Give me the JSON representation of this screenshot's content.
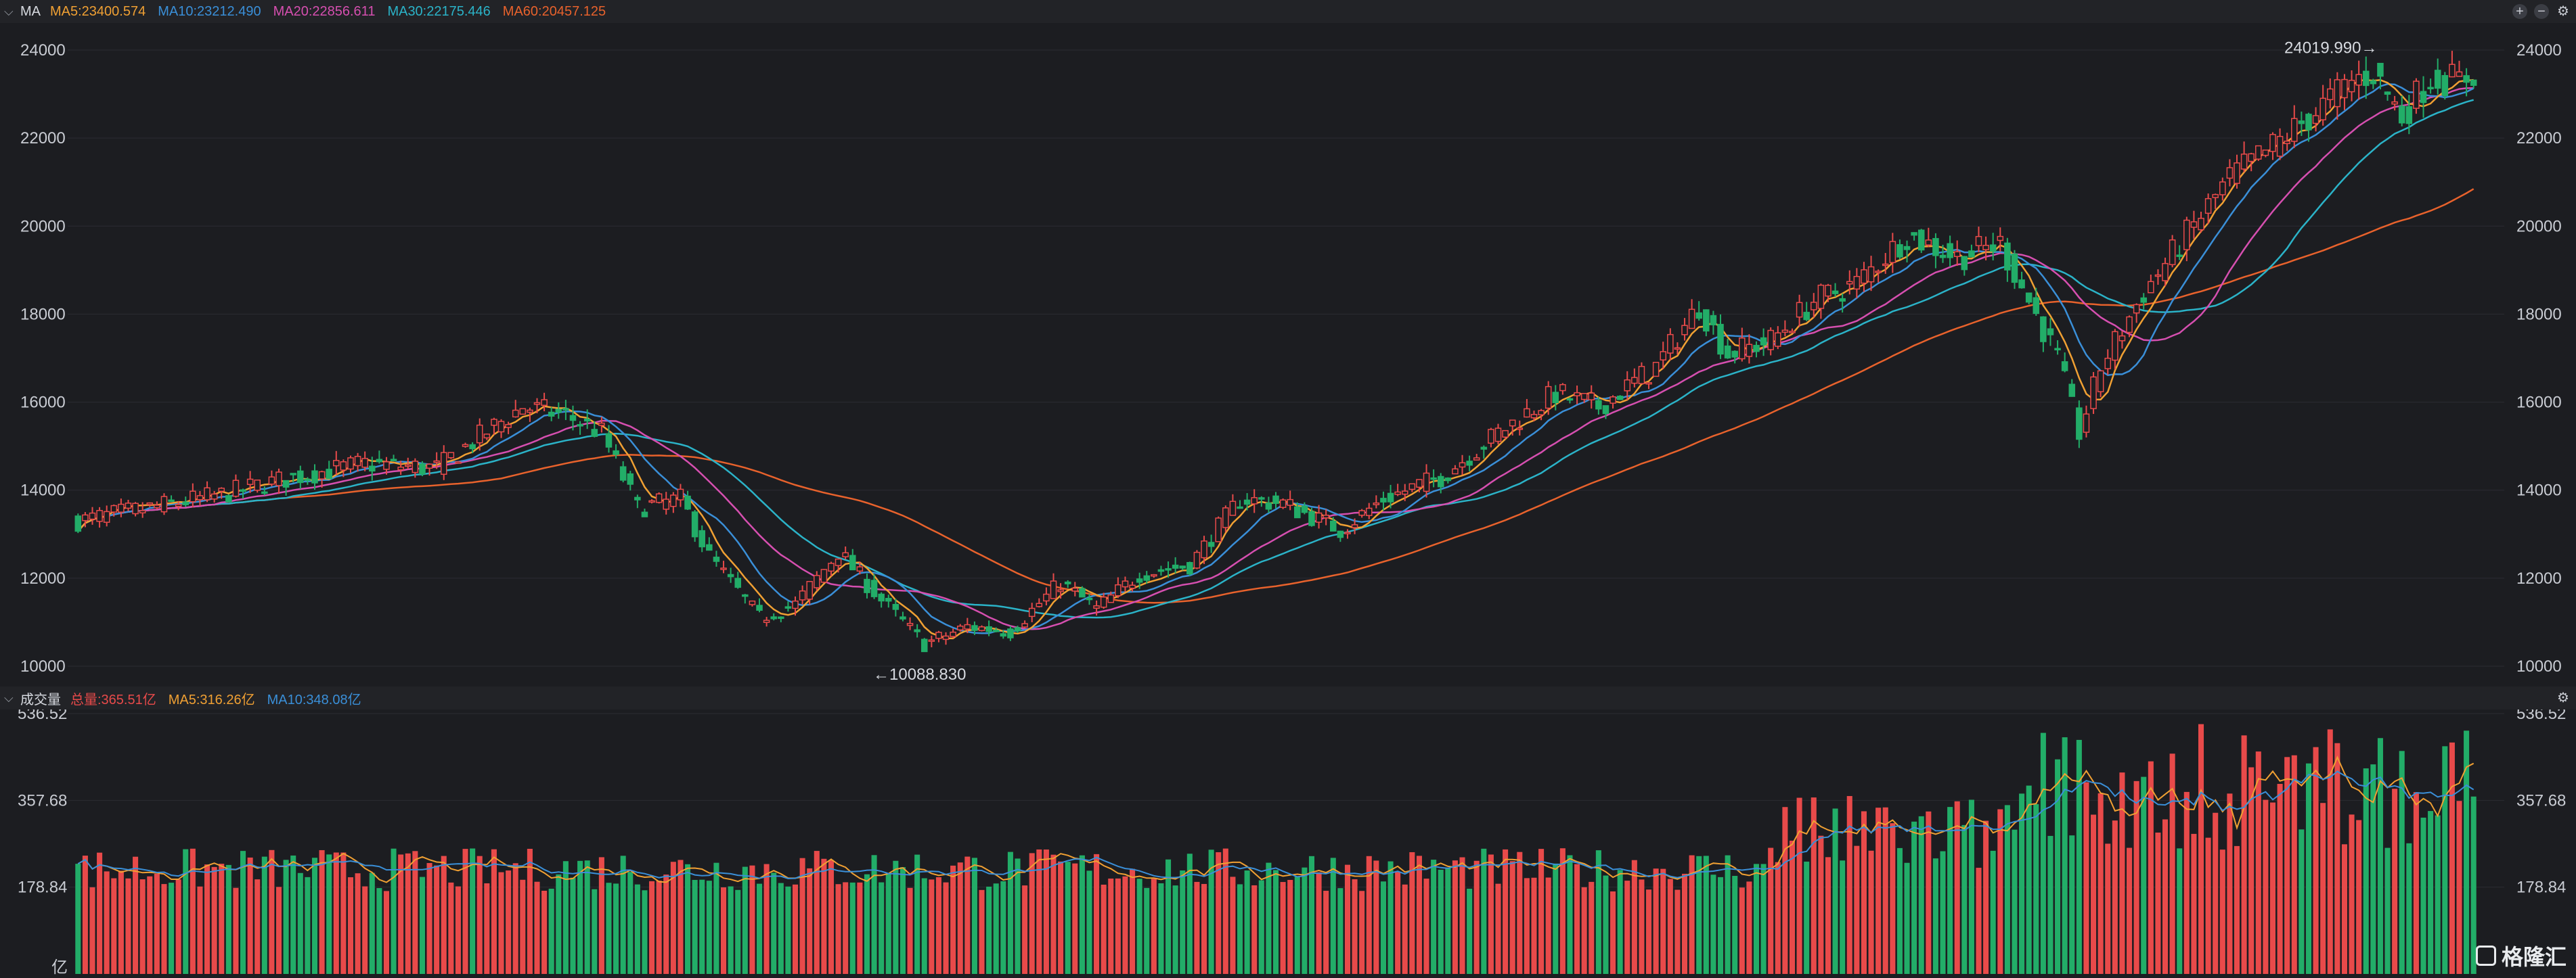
{
  "price_panel": {
    "indicator": "MA",
    "legend": [
      {
        "text": "MA5:23400.574",
        "color": "#f0a033"
      },
      {
        "text": "MA10:23212.490",
        "color": "#3a8fd8"
      },
      {
        "text": "MA20:22856.611",
        "color": "#d64fb0"
      },
      {
        "text": "MA30:22175.446",
        "color": "#2bb3c8"
      },
      {
        "text": "MA60:20457.125",
        "color": "#e8622c"
      }
    ],
    "high_label": "24019.990→",
    "low_label": "←10088.830"
  },
  "volume_panel": {
    "label": "成交量",
    "legend": [
      {
        "text": "总量:365.51亿",
        "color": "#e84a4a"
      },
      {
        "text": "MA5:316.26亿",
        "color": "#f0a033"
      },
      {
        "text": "MA10:348.08亿",
        "color": "#3a8fd8"
      }
    ],
    "unit": "亿"
  },
  "tools": {
    "zoom_in": "+",
    "zoom_out": "−",
    "settings": "⚙"
  },
  "watermark": "格隆汇",
  "colors": {
    "up": "#e84a4a",
    "down": "#22ad68",
    "background": "#1c1d21",
    "grid": "#2b2d33"
  },
  "chart_data": [
    {
      "type": "candlestick",
      "title": "",
      "ylim": [
        10000,
        24000
      ],
      "yticks": [
        "24000",
        "22000",
        "20000",
        "18000",
        "16000",
        "14000",
        "12000",
        "10000"
      ],
      "grid": true,
      "anchors": [
        {
          "i": 0,
          "close": 13300
        },
        {
          "i": 10,
          "close": 13600
        },
        {
          "i": 20,
          "close": 13900
        },
        {
          "i": 30,
          "close": 14300
        },
        {
          "i": 40,
          "close": 14600
        },
        {
          "i": 50,
          "close": 14500
        },
        {
          "i": 55,
          "close": 15100
        },
        {
          "i": 62,
          "close": 15900
        },
        {
          "i": 68,
          "close": 15700
        },
        {
          "i": 73,
          "close": 15300
        },
        {
          "i": 78,
          "close": 13600
        },
        {
          "i": 84,
          "close": 13800
        },
        {
          "i": 88,
          "close": 12500
        },
        {
          "i": 95,
          "close": 11100
        },
        {
          "i": 100,
          "close": 11400
        },
        {
          "i": 106,
          "close": 12600
        },
        {
          "i": 112,
          "close": 11500
        },
        {
          "i": 118,
          "close": 10500
        },
        {
          "i": 124,
          "close": 10900
        },
        {
          "i": 130,
          "close": 10800
        },
        {
          "i": 137,
          "close": 11900
        },
        {
          "i": 142,
          "close": 11300
        },
        {
          "i": 148,
          "close": 12100
        },
        {
          "i": 155,
          "close": 12300
        },
        {
          "i": 162,
          "close": 13800
        },
        {
          "i": 168,
          "close": 13700
        },
        {
          "i": 176,
          "close": 13100
        },
        {
          "i": 182,
          "close": 13800
        },
        {
          "i": 190,
          "close": 14300
        },
        {
          "i": 198,
          "close": 15300
        },
        {
          "i": 206,
          "close": 16200
        },
        {
          "i": 212,
          "close": 15900
        },
        {
          "i": 220,
          "close": 16800
        },
        {
          "i": 226,
          "close": 18200
        },
        {
          "i": 230,
          "close": 17100
        },
        {
          "i": 236,
          "close": 17400
        },
        {
          "i": 242,
          "close": 18300
        },
        {
          "i": 248,
          "close": 18700
        },
        {
          "i": 255,
          "close": 19800
        },
        {
          "i": 262,
          "close": 19300
        },
        {
          "i": 268,
          "close": 19600
        },
        {
          "i": 272,
          "close": 18300
        },
        {
          "i": 276,
          "close": 17000
        },
        {
          "i": 279,
          "close": 15300
        },
        {
          "i": 282,
          "close": 16800
        },
        {
          "i": 288,
          "close": 18500
        },
        {
          "i": 294,
          "close": 19800
        },
        {
          "i": 300,
          "close": 21100
        },
        {
          "i": 306,
          "close": 21800
        },
        {
          "i": 312,
          "close": 22600
        },
        {
          "i": 317,
          "close": 23300
        },
        {
          "i": 320,
          "close": 23500
        },
        {
          "i": 324,
          "close": 22500
        },
        {
          "i": 328,
          "close": 23400
        },
        {
          "i": 332,
          "close": 23300
        },
        {
          "i": 334,
          "close": 23500
        }
      ],
      "ma_series": [
        {
          "name": "MA5",
          "window": 5,
          "color": "#f0a033",
          "last": 23400.574
        },
        {
          "name": "MA10",
          "window": 10,
          "color": "#3a8fd8",
          "last": 23212.49
        },
        {
          "name": "MA20",
          "window": 20,
          "color": "#d64fb0",
          "last": 22856.611
        },
        {
          "name": "MA30",
          "window": 30,
          "color": "#2bb3c8",
          "last": 22175.446
        },
        {
          "name": "MA60",
          "window": 60,
          "color": "#e8622c",
          "last": 20457.125
        }
      ],
      "max_price": 24019.99,
      "min_price": 10088.83
    },
    {
      "type": "bar",
      "title": "",
      "ylim": [
        0,
        536.52
      ],
      "yticks": [
        "536.52",
        "357.68",
        "178.84"
      ],
      "last_value": 365.51,
      "ma_series": [
        {
          "name": "MA5",
          "color": "#f0a033",
          "last": 316.26
        },
        {
          "name": "MA10",
          "color": "#3a8fd8",
          "last": 348.08
        }
      ]
    }
  ]
}
